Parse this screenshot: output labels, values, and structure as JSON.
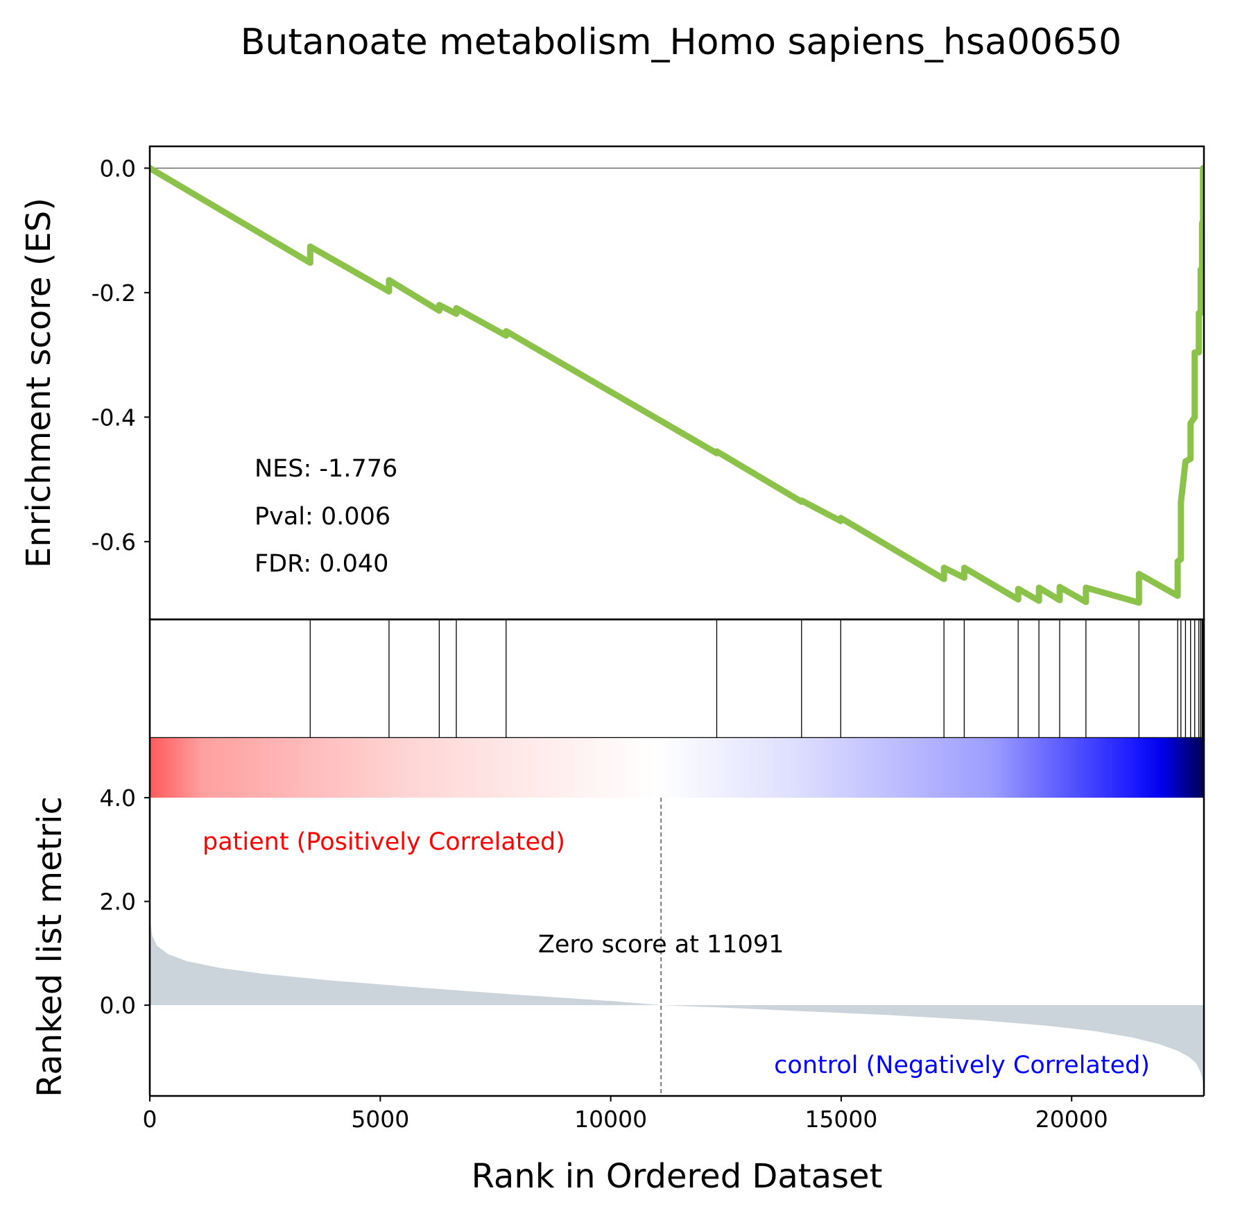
{
  "chart_data": {
    "type": "line",
    "title": "Butanoate metabolism_Homo sapiens_hsa00650",
    "xlabel": "Rank in Ordered Dataset",
    "xlim": [
      0,
      22870
    ],
    "x_ticks": [
      0,
      5000,
      10000,
      15000,
      20000
    ],
    "x_tick_labels": [
      "0",
      "5000",
      "10000",
      "15000",
      "20000"
    ],
    "es_panel": {
      "ylabel": "Enrichment score (ES)",
      "ylim": [
        -0.725,
        0.035
      ],
      "y_ticks": [
        0.0,
        -0.2,
        -0.4,
        -0.6
      ],
      "y_tick_labels": [
        "0.0",
        "-0.2",
        "-0.4",
        "-0.6"
      ],
      "line_color": "#8bc34a",
      "stats": [
        "NES: -1.776",
        "Pval: 0.006",
        "FDR: 0.040"
      ],
      "series": [
        {
          "x": [
            0,
            3480,
            3480,
            5190,
            5190,
            6280,
            6280,
            6650,
            6650,
            7730,
            7730,
            12300,
            12300,
            14140,
            14140,
            14990,
            14990,
            17230,
            17230,
            17670,
            17670,
            18840,
            18840,
            19290,
            19290,
            19740,
            19740,
            20310,
            20310,
            21460,
            21460,
            22300,
            22300,
            22370,
            22370,
            22470,
            22470,
            22580,
            22580,
            22670,
            22670,
            22760,
            22760,
            22800,
            22800,
            22830,
            22830,
            22850,
            22850
          ],
          "y": [
            0,
            -0.152,
            -0.126,
            -0.198,
            -0.18,
            -0.229,
            -0.22,
            -0.234,
            -0.225,
            -0.269,
            -0.262,
            -0.458,
            -0.455,
            -0.536,
            -0.534,
            -0.567,
            -0.562,
            -0.66,
            -0.642,
            -0.658,
            -0.642,
            -0.693,
            -0.676,
            -0.695,
            -0.674,
            -0.694,
            -0.673,
            -0.697,
            -0.674,
            -0.698,
            -0.652,
            -0.687,
            -0.632,
            -0.628,
            -0.537,
            -0.471,
            -0.471,
            -0.467,
            -0.41,
            -0.4,
            -0.296,
            -0.296,
            -0.233,
            -0.233,
            -0.163,
            -0.163,
            -0.088,
            -0.088,
            0
          ]
        }
      ]
    },
    "hits": [
      3480,
      5190,
      6280,
      6650,
      7730,
      12300,
      14140,
      14990,
      17230,
      17670,
      18840,
      19290,
      19740,
      20310,
      21460,
      22300,
      22370,
      22470,
      22580,
      22670,
      22760,
      22800,
      22830,
      22850
    ],
    "colorbar": {
      "colors": [
        "#ff5a5a",
        "#ffffff",
        "#0000ff",
        "#000050"
      ]
    },
    "metric_panel": {
      "ylabel": "Ranked list metric",
      "ylim": [
        -1.75,
        4.0
      ],
      "y_ticks": [
        4.0,
        2.0,
        0.0
      ],
      "y_tick_labels": [
        "4.0",
        "2.0",
        "0.0"
      ],
      "fill_color": "#cbd3db",
      "curve": {
        "x": [
          0,
          50,
          150,
          400,
          800,
          1500,
          2500,
          4000,
          6000,
          8000,
          10000,
          11091,
          12500,
          14000,
          16000,
          18000,
          19500,
          20500,
          21300,
          21900,
          22300,
          22550,
          22700,
          22800,
          22870
        ],
        "y": [
          1.7,
          1.35,
          1.15,
          0.98,
          0.85,
          0.72,
          0.6,
          0.47,
          0.33,
          0.2,
          0.08,
          0.0,
          -0.05,
          -0.11,
          -0.19,
          -0.29,
          -0.4,
          -0.5,
          -0.62,
          -0.75,
          -0.88,
          -1.0,
          -1.12,
          -1.3,
          -1.55
        ]
      },
      "zero_score_rank": 11091,
      "zero_score_label": "Zero score at 11091",
      "pos_label": "patient (Positively Correlated)",
      "neg_label": "control (Negatively Correlated)",
      "pos_color": "#ff0000",
      "neg_color": "#0000ff"
    }
  }
}
